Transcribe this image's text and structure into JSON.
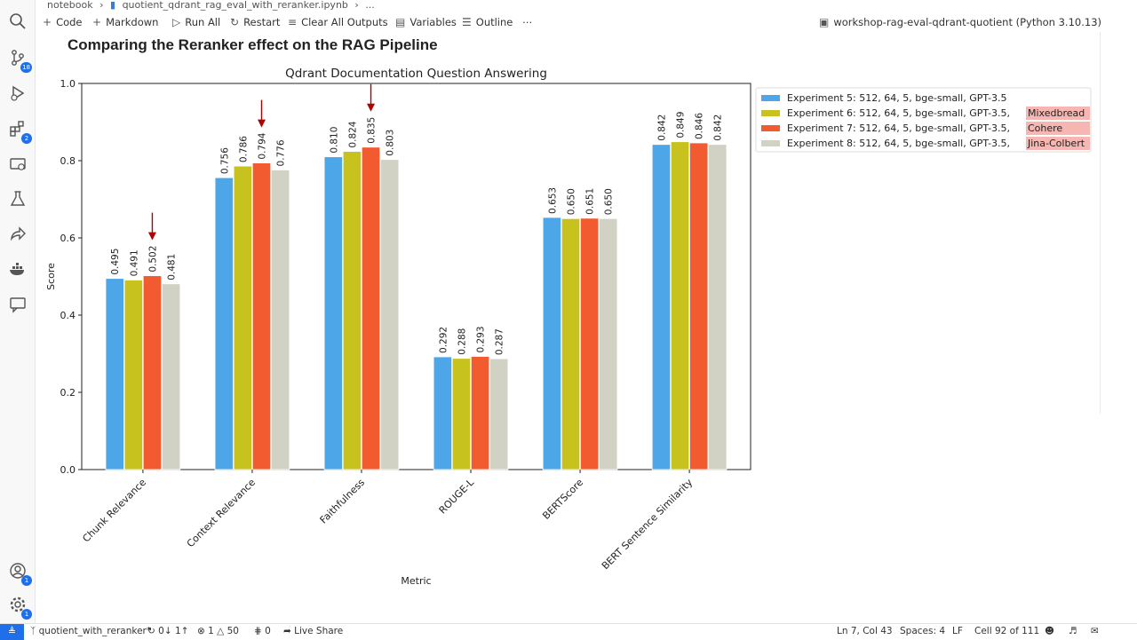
{
  "breadcrumb": {
    "folder": "notebook",
    "file": "quotient_qdrant_rag_eval_with_reranker.ipynb",
    "more": "..."
  },
  "toolbar": {
    "code": "Code",
    "markdown": "Markdown",
    "run_all": "Run All",
    "restart": "Restart",
    "clear_all": "Clear All Outputs",
    "variables": "Variables",
    "outline": "Outline",
    "more": "⋯",
    "kernel": "workshop-rag-eval-qdrant-quotient (Python 3.10.13)"
  },
  "activity": {
    "source_control_badge": "18",
    "extensions_badge": "2",
    "accounts_badge": "1",
    "settings_badge": "1"
  },
  "heading": "Comparing the Reranker effect on the RAG Pipeline",
  "chart_data": {
    "type": "bar",
    "title": "Qdrant Documentation Question Answering",
    "xlabel": "Metric",
    "ylabel": "Score",
    "ylim": [
      0,
      1.0
    ],
    "yticks": [
      "0.0",
      "0.2",
      "0.4",
      "0.6",
      "0.8",
      "1.0"
    ],
    "categories": [
      "Chunk Relevance",
      "Context Relevance",
      "Faithfulness",
      "ROUGE-L",
      "BERTScore",
      "BERT Sentence Similarity"
    ],
    "series": [
      {
        "name": "Experiment 5:   512,   64, 5, bge-small, GPT-3.5",
        "highlight": "",
        "color": "#4da6e8",
        "values": [
          0.495,
          0.756,
          0.81,
          0.292,
          0.653,
          0.842
        ],
        "labels": [
          "0.495",
          "0.756",
          "0.810",
          "0.292",
          "0.653",
          "0.842"
        ]
      },
      {
        "name": "Experiment 6:   512,   64, 5, bge-small, GPT-3.5,",
        "highlight": "Mixedbread",
        "color": "#c8c21e",
        "values": [
          0.491,
          0.786,
          0.824,
          0.288,
          0.65,
          0.849
        ],
        "labels": [
          "0.491",
          "0.786",
          "0.824",
          "0.288",
          "0.650",
          "0.849"
        ]
      },
      {
        "name": "Experiment 7:   512,   64, 5, bge-small, GPT-3.5,",
        "highlight": "Cohere",
        "color": "#f25a30",
        "values": [
          0.502,
          0.794,
          0.835,
          0.293,
          0.651,
          0.846
        ],
        "labels": [
          "0.502",
          "0.794",
          "0.835",
          "0.293",
          "0.651",
          "0.846"
        ]
      },
      {
        "name": "Experiment 8:   512,   64, 5, bge-small, GPT-3.5,",
        "highlight": "Jina-Colbert",
        "color": "#d1d1c4",
        "values": [
          0.481,
          0.776,
          0.803,
          0.287,
          0.65,
          0.842
        ],
        "labels": [
          "0.481",
          "0.776",
          "0.803",
          "0.287",
          "0.650",
          "0.842"
        ]
      }
    ],
    "annotations": [
      {
        "category": 0,
        "series": 2,
        "type": "arrow"
      },
      {
        "category": 1,
        "series": 2,
        "type": "arrow"
      },
      {
        "category": 2,
        "series": 2,
        "type": "arrow"
      }
    ],
    "legend_position": "outside-right",
    "grid": false
  },
  "status": {
    "branch": "quotient_with_reranker*",
    "sync": "0↓ 1↑",
    "errors": "1",
    "warnings": "50",
    "ports": "0",
    "live_share": "Live Share",
    "position": "Ln 7, Col 43",
    "spaces": "Spaces: 4",
    "eol": "LF",
    "cell": "Cell 92 of 111"
  }
}
